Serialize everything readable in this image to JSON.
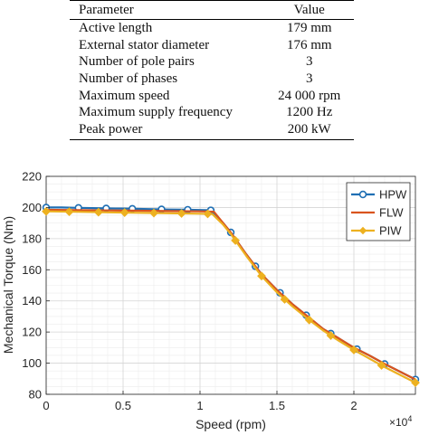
{
  "table": {
    "headers": [
      "Parameter",
      "Value"
    ],
    "rows": [
      [
        "Active length",
        "179 mm"
      ],
      [
        "External stator diameter",
        "176 mm"
      ],
      [
        "Number of pole pairs",
        "3"
      ],
      [
        "Number of phases",
        "3"
      ],
      [
        "Maximum speed",
        "24 000 rpm"
      ],
      [
        "Maximum supply frequency",
        "1200 Hz"
      ],
      [
        "Peak power",
        "200 kW"
      ]
    ]
  },
  "chart_data": {
    "type": "line",
    "title": "",
    "xlabel": "Speed (rpm)",
    "ylabel": "Mechanical Torque (Nm)",
    "x_multiplier_label": "×10^4",
    "xlim": [
      0,
      24000
    ],
    "ylim": [
      80,
      220
    ],
    "x_ticks": [
      0,
      5000,
      10000,
      15000,
      20000
    ],
    "x_tick_labels": [
      "0",
      "0.5",
      "1",
      "1.5",
      "2"
    ],
    "y_ticks": [
      80,
      100,
      120,
      140,
      160,
      180,
      200,
      220
    ],
    "grid": true,
    "legend_position": "top-right",
    "series": [
      {
        "name": "HPW",
        "color": "#1f6fb4",
        "marker": "circle",
        "x": [
          0,
          1000,
          2000,
          3000,
          4000,
          5000,
          6000,
          7000,
          8000,
          9000,
          10000,
          10700,
          11500,
          12000,
          12500,
          13000,
          14000,
          15000,
          16000,
          17000,
          18000,
          19000,
          20000,
          21000,
          22000,
          23000,
          24000
        ],
        "y": [
          200,
          200,
          199.8,
          199.6,
          199.4,
          199.3,
          199.1,
          198.9,
          198.7,
          198.6,
          198.4,
          198.2,
          190,
          184,
          177,
          170,
          157,
          147,
          138,
          130,
          122,
          116,
          110,
          105,
          99.5,
          94.5,
          89.5
        ],
        "marker_x": [
          0,
          2100,
          3900,
          5600,
          7500,
          9200,
          10700,
          12000,
          13600,
          15200,
          16900,
          18500,
          20200,
          22000,
          24000
        ]
      },
      {
        "name": "FLW",
        "color": "#d9541e",
        "marker": "none",
        "x": [
          0,
          2000,
          4000,
          6000,
          8000,
          10000,
          10900,
          11500,
          12000,
          12500,
          13000,
          14000,
          15000,
          16000,
          17000,
          18000,
          19000,
          20000,
          21000,
          22000,
          23000,
          24000
        ],
        "y": [
          198.5,
          198.3,
          198.1,
          197.9,
          197.7,
          197.5,
          197.3,
          190,
          184,
          177,
          170,
          157,
          147,
          138,
          130,
          122,
          116,
          110,
          105,
          99.5,
          94.5,
          89.5
        ]
      },
      {
        "name": "PIW",
        "color": "#edb120",
        "marker": "diamond",
        "x": [
          0,
          2000,
          4000,
          6000,
          8000,
          10000,
          10800,
          11500,
          12000,
          12500,
          13000,
          14000,
          15000,
          16000,
          17000,
          18000,
          19000,
          20000,
          21000,
          22000,
          23000,
          24000
        ],
        "y": [
          197.5,
          197.2,
          196.9,
          196.6,
          196.3,
          196,
          195.8,
          189,
          183,
          176,
          169,
          156,
          145.5,
          136.5,
          128.5,
          121,
          114.5,
          108.5,
          103,
          97.5,
          92.5,
          87.5
        ],
        "marker_x": [
          0,
          1500,
          3400,
          5100,
          7000,
          8800,
          10500,
          12300,
          14000,
          15500,
          17100,
          18500,
          20000,
          21800,
          24000
        ]
      }
    ]
  }
}
